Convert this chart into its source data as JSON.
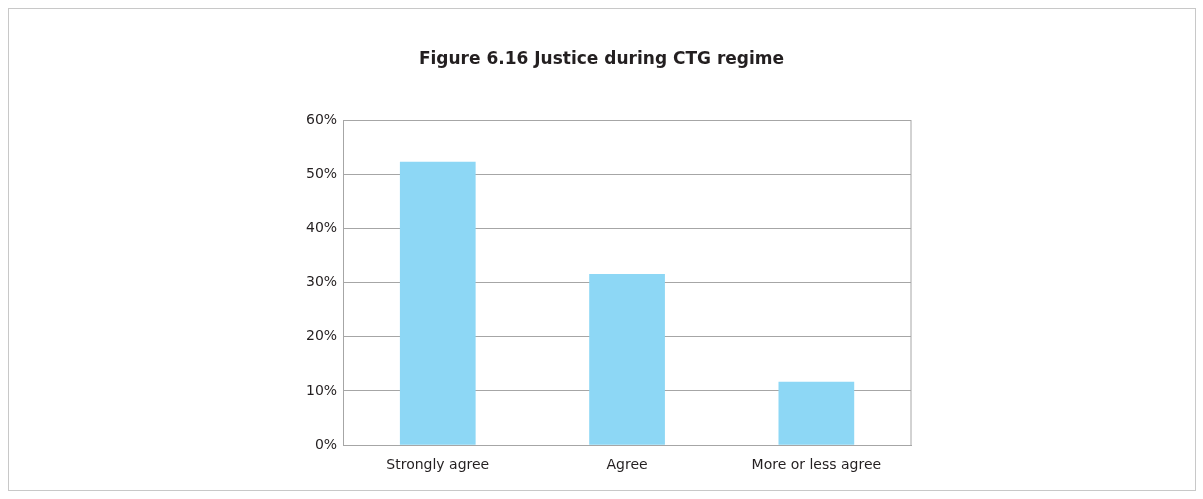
{
  "chart_data": {
    "type": "bar",
    "title": "Figure 6.16 Justice during CTG regime",
    "categories": [
      "Strongly agree",
      "Agree",
      "More or less agree"
    ],
    "values": [
      0.523,
      0.316,
      0.117
    ],
    "color": "#8dd7f5",
    "ylim": [
      0,
      0.6
    ],
    "yticks": [
      {
        "value": 0,
        "label": "0%"
      },
      {
        "value": 0.1,
        "label": "10%"
      },
      {
        "value": 0.2,
        "label": "20%"
      },
      {
        "value": 0.3,
        "label": "30%"
      },
      {
        "value": 0.4,
        "label": "40%"
      },
      {
        "value": 0.5,
        "label": "50%"
      },
      {
        "value": 0.6,
        "label": "60%"
      }
    ],
    "grid": "y"
  }
}
